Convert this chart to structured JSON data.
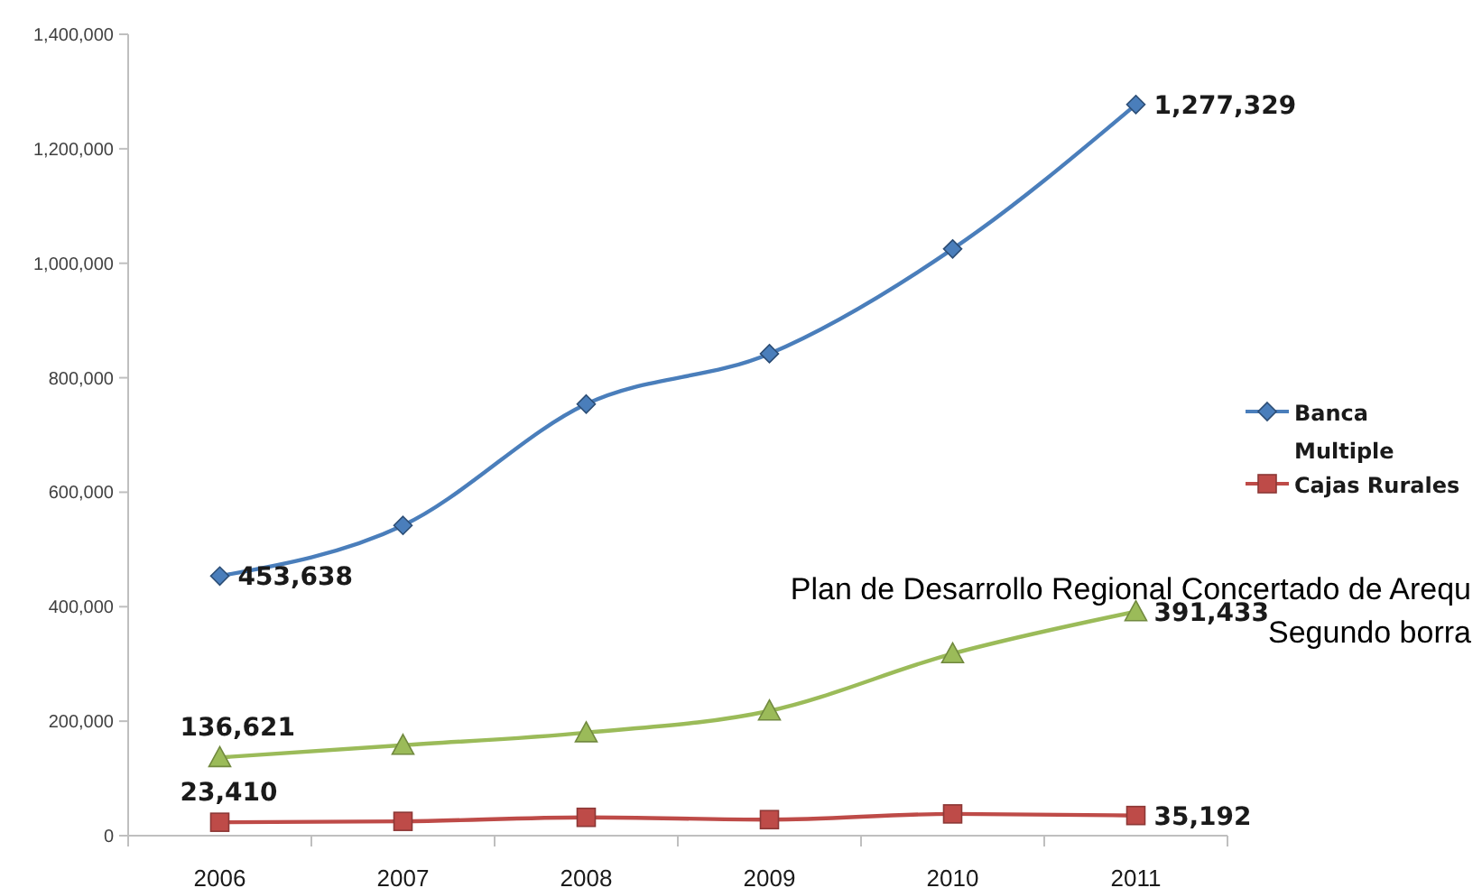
{
  "chart_data": {
    "type": "line",
    "categories": [
      "2006",
      "2007",
      "2008",
      "2009",
      "2010",
      "2011"
    ],
    "series": [
      {
        "name": "Banca Multiple",
        "color": "#4a7ebb",
        "marker": "diamond",
        "values": [
          453638,
          542000,
          754000,
          842000,
          1025000,
          1277329
        ],
        "value_labels": [
          "453,638",
          null,
          null,
          null,
          null,
          "1,277,329"
        ]
      },
      {
        "name": "Cajas Rurales",
        "color": "#be4b48",
        "marker": "square",
        "values": [
          23410,
          25000,
          32000,
          28000,
          38000,
          35192
        ],
        "value_labels": [
          "23,410",
          null,
          null,
          null,
          null,
          "35,192"
        ]
      },
      {
        "color": "#9bbb59",
        "marker": "triangle",
        "values": [
          136621,
          158000,
          180000,
          218000,
          318000,
          391433
        ],
        "value_labels": [
          "136,621",
          null,
          null,
          null,
          null,
          "391,433"
        ]
      }
    ],
    "ylim": [
      0,
      1400000
    ],
    "yticks": [
      {
        "value": 0,
        "label": "0"
      },
      {
        "value": 200000,
        "label": "200,000"
      },
      {
        "value": 400000,
        "label": "400,000"
      },
      {
        "value": 600000,
        "label": "600,000"
      },
      {
        "value": 800000,
        "label": "800,000"
      },
      {
        "value": 1000000,
        "label": "1,000,000"
      },
      {
        "value": 1200000,
        "label": "1,200,000"
      },
      {
        "value": 1400000,
        "label": "1,400,000"
      }
    ],
    "legend": "right",
    "annotations": [
      "Plan de Desarrollo Regional Concertado de Arequ",
      "Segundo borra"
    ]
  }
}
